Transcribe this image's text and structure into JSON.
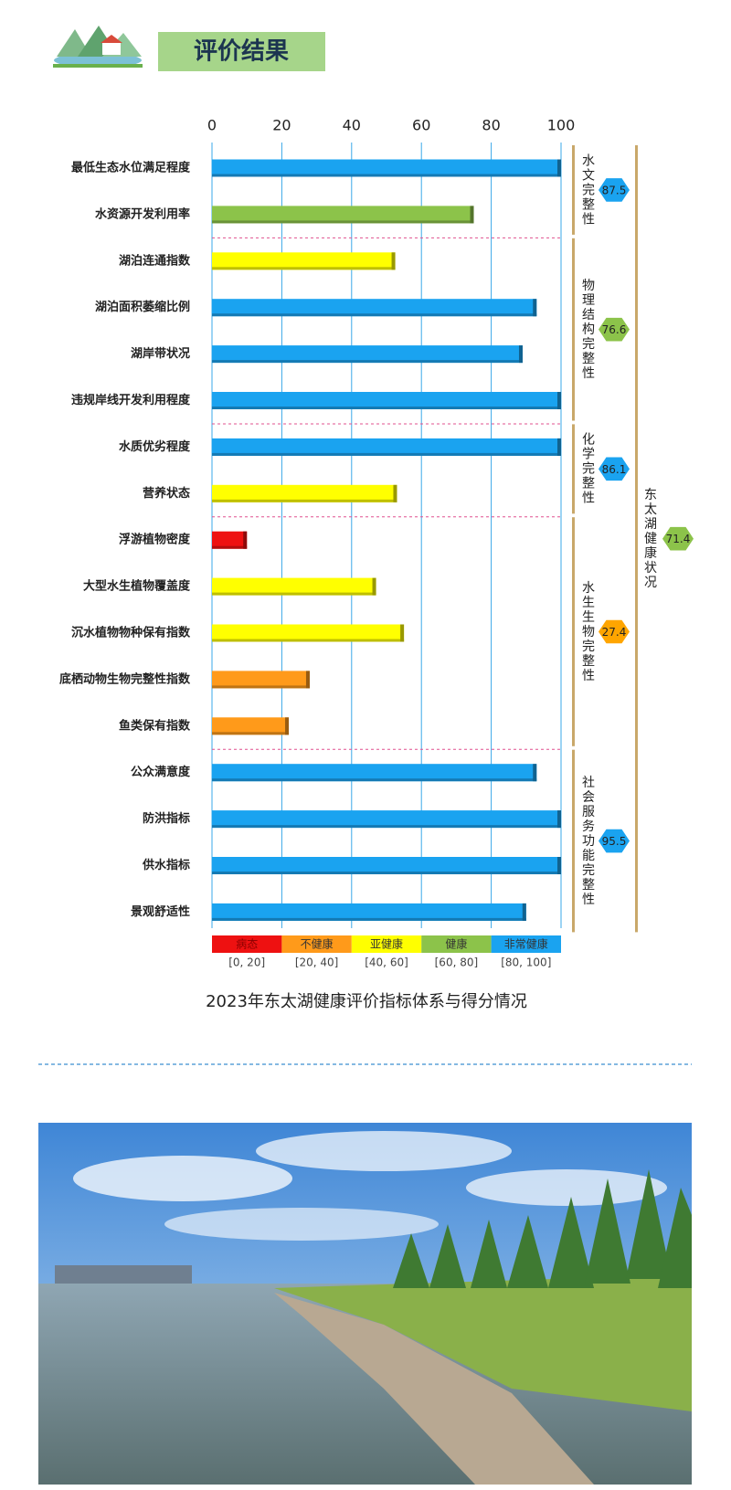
{
  "header": {
    "title": "评价结果"
  },
  "chart_data": {
    "type": "bar",
    "title": "2023年东太湖健康评价指标体系与得分情况",
    "xlim": [
      0,
      100
    ],
    "xticks": [
      0,
      20,
      40,
      60,
      80,
      100
    ],
    "grid": true,
    "groups": [
      {
        "name": "水文完整性",
        "score": 87.5,
        "color": "#1aa3f0",
        "items": [
          {
            "name": "最低生态水位满足程度",
            "value": 100,
            "color": "#1aa3f0"
          },
          {
            "name": "水资源开发利用率",
            "value": 75,
            "color": "#8cc34a"
          }
        ]
      },
      {
        "name": "物理结构完整性",
        "score": 76.6,
        "color": "#8cc34a",
        "items": [
          {
            "name": "湖泊连通指数",
            "value": 52.5,
            "color": "#ffff00"
          },
          {
            "name": "湖泊面积萎缩比例",
            "value": 93,
            "color": "#1aa3f0"
          },
          {
            "name": "湖岸带状况",
            "value": 89,
            "color": "#1aa3f0"
          },
          {
            "name": "违规岸线开发利用程度",
            "value": 100,
            "color": "#1aa3f0"
          }
        ]
      },
      {
        "name": "化学完整性",
        "score": 86.1,
        "color": "#1aa3f0",
        "items": [
          {
            "name": "水质优劣程度",
            "value": 100,
            "color": "#1aa3f0"
          },
          {
            "name": "营养状态",
            "value": 53,
            "color": "#ffff00"
          }
        ]
      },
      {
        "name": "水生生物完整性",
        "score": 27.4,
        "color": "#ffa500",
        "items": [
          {
            "name": "浮游植物密度",
            "value": 10,
            "color": "#ee1111"
          },
          {
            "name": "大型水生植物覆盖度",
            "value": 47,
            "color": "#ffff00"
          },
          {
            "name": "沉水植物物种保有指数",
            "value": 55,
            "color": "#ffff00"
          },
          {
            "name": "底栖动物生物完整性指数",
            "value": 28,
            "color": "#ff9a1a"
          },
          {
            "name": "鱼类保有指数",
            "value": 22,
            "color": "#ff9a1a"
          }
        ]
      },
      {
        "name": "社会服务功能完整性",
        "score": 95.5,
        "color": "#1aa3f0",
        "items": [
          {
            "name": "公众满意度",
            "value": 93,
            "color": "#1aa3f0"
          },
          {
            "name": "防洪指标",
            "value": 100,
            "color": "#1aa3f0"
          },
          {
            "name": "供水指标",
            "value": 100,
            "color": "#1aa3f0"
          },
          {
            "name": "景观舒适性",
            "value": 90,
            "color": "#1aa3f0"
          }
        ]
      }
    ],
    "overall": {
      "name": "东太湖健康状况",
      "score": 71.4,
      "color": "#8cc34a"
    },
    "legend": [
      {
        "name": "病态",
        "range": "[0, 20]",
        "color": "#ee1111"
      },
      {
        "name": "不健康",
        "range": "[20, 40]",
        "color": "#ff9a1a"
      },
      {
        "name": "亚健康",
        "range": "[40, 60]",
        "color": "#ffff00"
      },
      {
        "name": "健康",
        "range": "[60, 80]",
        "color": "#8cc34a"
      },
      {
        "name": "非常健康",
        "range": "[80, 100]",
        "color": "#1aa3f0"
      }
    ]
  }
}
